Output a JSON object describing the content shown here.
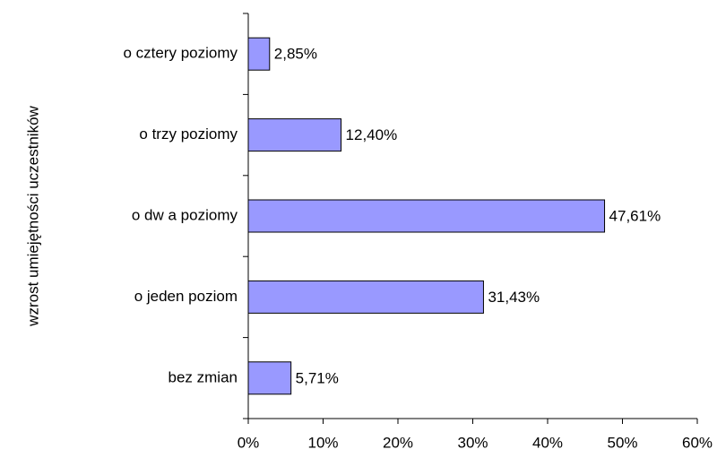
{
  "chart_data": {
    "type": "bar",
    "orientation": "horizontal",
    "ylabel": "wzrost umiejętności uczestników",
    "categories": [
      "o cztery poziomy",
      "o trzy poziomy",
      "o dw a poziomy",
      "o jeden poziom",
      "bez zmian"
    ],
    "values": [
      2.85,
      12.4,
      47.61,
      31.43,
      5.71
    ],
    "value_labels": [
      "2,85%",
      "12,40%",
      "47,61%",
      "31,43%",
      "5,71%"
    ],
    "color": "#9999ff",
    "xlim": [
      0,
      60
    ],
    "xticks": [
      {
        "value": 0,
        "label": "0%"
      },
      {
        "value": 10,
        "label": "10%"
      },
      {
        "value": 20,
        "label": "20%"
      },
      {
        "value": 30,
        "label": "30%"
      },
      {
        "value": 40,
        "label": "40%"
      },
      {
        "value": 50,
        "label": "50%"
      },
      {
        "value": 60,
        "label": "60%"
      }
    ],
    "grid": false
  }
}
